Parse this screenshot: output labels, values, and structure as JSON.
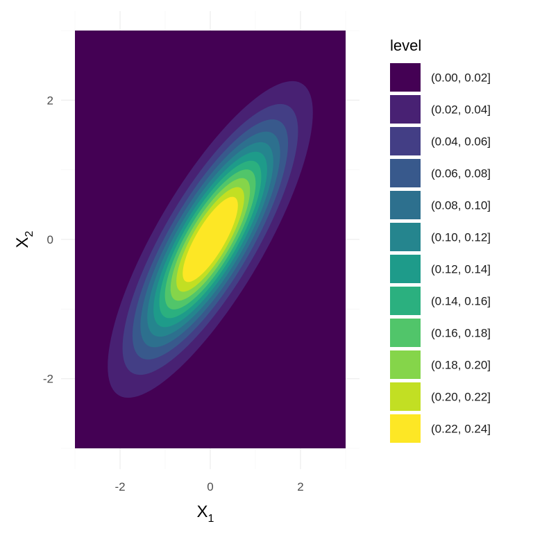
{
  "chart_data": {
    "type": "contour",
    "description_values": "Filled density contours of a correlated bivariate normal distribution",
    "x": {
      "label_main": "X",
      "label_sub": "1",
      "lim": [
        -3,
        3
      ],
      "ticks": [
        -2,
        0,
        2
      ],
      "tick_labels": [
        "-2",
        "0",
        "2"
      ]
    },
    "y": {
      "label_main": "X",
      "label_sub": "2",
      "lim": [
        -3,
        3
      ],
      "ticks": [
        -2,
        0,
        2
      ],
      "tick_labels": [
        "-2",
        "0",
        "2"
      ]
    },
    "distribution": {
      "mean": [
        0,
        0
      ],
      "sd": [
        1,
        1
      ],
      "correlation": 0.8
    },
    "legend": {
      "title": "level",
      "position": "right",
      "levels": [
        {
          "label": "(0.00, 0.02]",
          "low": 0.0,
          "high": 0.02,
          "color": "#440154"
        },
        {
          "label": "(0.02, 0.04]",
          "low": 0.02,
          "high": 0.04,
          "color": "#482173"
        },
        {
          "label": "(0.04, 0.06]",
          "low": 0.04,
          "high": 0.06,
          "color": "#433E85"
        },
        {
          "label": "(0.06, 0.08]",
          "low": 0.06,
          "high": 0.08,
          "color": "#38598C"
        },
        {
          "label": "(0.08, 0.10]",
          "low": 0.08,
          "high": 0.1,
          "color": "#2D708E"
        },
        {
          "label": "(0.10, 0.12]",
          "low": 0.1,
          "high": 0.12,
          "color": "#25858E"
        },
        {
          "label": "(0.12, 0.14]",
          "low": 0.12,
          "high": 0.14,
          "color": "#1E9B8A"
        },
        {
          "label": "(0.14, 0.16]",
          "low": 0.14,
          "high": 0.16,
          "color": "#2BB07F"
        },
        {
          "label": "(0.16, 0.18]",
          "low": 0.16,
          "high": 0.18,
          "color": "#51C56A"
        },
        {
          "label": "(0.18, 0.20]",
          "low": 0.18,
          "high": 0.2,
          "color": "#85D54A"
        },
        {
          "label": "(0.20, 0.22]",
          "low": 0.2,
          "high": 0.22,
          "color": "#C2DF23"
        },
        {
          "label": "(0.22, 0.24]",
          "low": 0.22,
          "high": 0.24,
          "color": "#FDE725"
        }
      ]
    },
    "grid": true
  }
}
